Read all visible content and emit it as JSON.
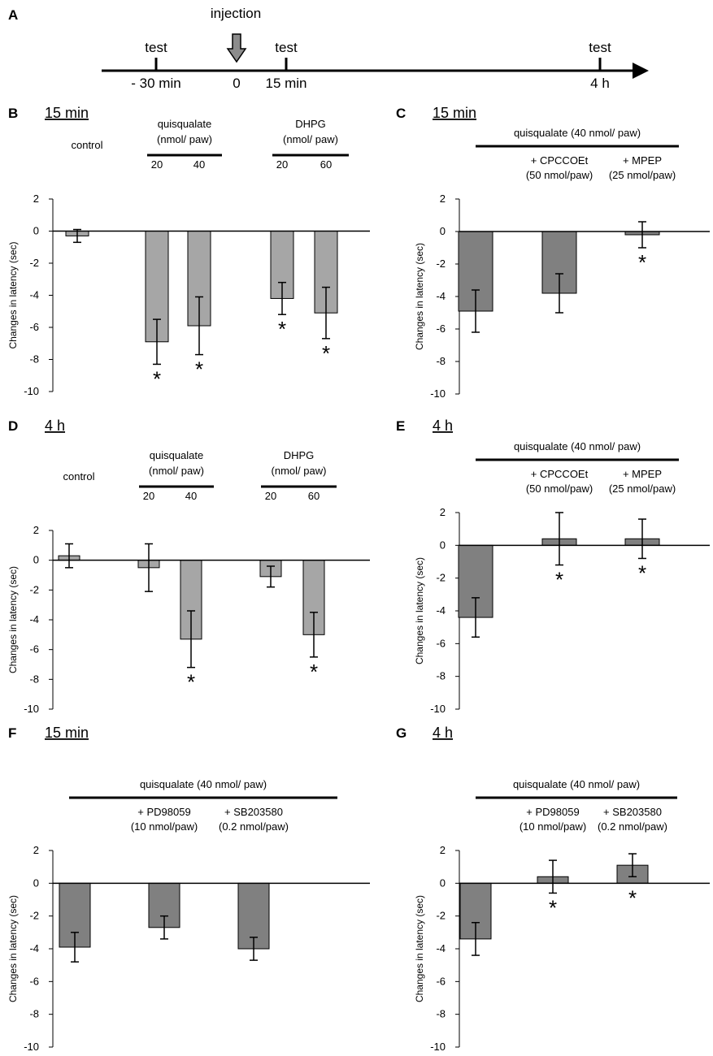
{
  "timeline": {
    "panel": "A",
    "injection_label": "injection",
    "events": [
      {
        "top": "test",
        "bottom": "- 30 min"
      },
      {
        "top": "",
        "bottom": "0"
      },
      {
        "top": "test",
        "bottom": "15 min"
      },
      {
        "top": "test",
        "bottom": "4 h"
      }
    ]
  },
  "chart_data": [
    {
      "panel": "B",
      "title": "15 min",
      "type": "bar",
      "ylabel": "Changes in latency (sec)",
      "ylim": [
        -10,
        2
      ],
      "yticks": [
        2,
        0,
        -2,
        -4,
        -6,
        -8,
        -10
      ],
      "bar_color": "#a6a6a6",
      "categories": [
        "control",
        "quisqualate 20",
        "quisqualate 40",
        "DHPG 20",
        "DHPG 60"
      ],
      "values": [
        -0.3,
        -6.9,
        -5.9,
        -4.2,
        -5.1
      ],
      "errors": [
        0.4,
        1.4,
        1.8,
        1.0,
        1.6
      ],
      "significant": [
        false,
        true,
        true,
        true,
        true
      ],
      "dose_labels": [
        "",
        "20",
        "40",
        "20",
        "60"
      ],
      "groups": [
        {
          "lines": [
            "control"
          ],
          "bar": false
        },
        {
          "lines": [
            "quisqualate",
            "(nmol/ paw)"
          ],
          "bar": true
        },
        {
          "lines": [
            "DHPG",
            "(nmol/ paw)"
          ],
          "bar": true
        }
      ]
    },
    {
      "panel": "C",
      "title": "15 min",
      "type": "bar",
      "ylabel": "Changes in latency (sec)",
      "ylim": [
        -10,
        2
      ],
      "yticks": [
        2,
        0,
        -2,
        -4,
        -6,
        -8,
        -10
      ],
      "bar_color": "#808080",
      "categories": [
        "quisqualate",
        "+ CPCCOEt",
        "+ MPEP"
      ],
      "values": [
        -4.9,
        -3.8,
        -0.2
      ],
      "errors": [
        1.3,
        1.2,
        0.8
      ],
      "significant": [
        false,
        false,
        true
      ],
      "header": "quisqualate (40 nmol/ paw)",
      "sublabels": [
        [],
        [
          "+ CPCCOEt",
          "(50 nmol/paw)"
        ],
        [
          "+ MPEP",
          "(25 nmol/paw)"
        ]
      ]
    },
    {
      "panel": "D",
      "title": "4 h",
      "type": "bar",
      "ylabel": "Changes in latency (sec)",
      "ylim": [
        -10,
        2
      ],
      "yticks": [
        2,
        0,
        -2,
        -4,
        -6,
        -8,
        -10
      ],
      "bar_color": "#a6a6a6",
      "categories": [
        "control",
        "quisqualate 20",
        "quisqualate 40",
        "DHPG 20",
        "DHPG 60"
      ],
      "values": [
        0.3,
        -0.5,
        -5.3,
        -1.1,
        -5.0
      ],
      "errors": [
        0.8,
        1.6,
        1.9,
        0.7,
        1.5
      ],
      "significant": [
        false,
        false,
        true,
        false,
        true
      ],
      "dose_labels": [
        "",
        "20",
        "40",
        "20",
        "60"
      ],
      "groups": [
        {
          "lines": [
            "control"
          ],
          "bar": false
        },
        {
          "lines": [
            "quisqualate",
            "(nmol/ paw)"
          ],
          "bar": true
        },
        {
          "lines": [
            "DHPG",
            "(nmol/ paw)"
          ],
          "bar": true
        }
      ]
    },
    {
      "panel": "E",
      "title": "4 h",
      "type": "bar",
      "ylabel": "Changes in latency (sec)",
      "ylim": [
        -10,
        2
      ],
      "yticks": [
        2,
        0,
        -2,
        -4,
        -6,
        -8,
        -10
      ],
      "bar_color": "#808080",
      "categories": [
        "quisqualate",
        "+ CPCCOEt",
        "+ MPEP"
      ],
      "values": [
        -4.4,
        0.4,
        0.4
      ],
      "errors": [
        1.2,
        1.6,
        1.2
      ],
      "significant": [
        false,
        true,
        true
      ],
      "header": "quisqualate (40 nmol/ paw)",
      "sublabels": [
        [],
        [
          "+ CPCCOEt",
          "(50 nmol/paw)"
        ],
        [
          "+ MPEP",
          "(25 nmol/paw)"
        ]
      ]
    },
    {
      "panel": "F",
      "title": "15 min",
      "type": "bar",
      "ylabel": "Changes in latency (sec)",
      "ylim": [
        -10,
        2
      ],
      "yticks": [
        2,
        0,
        -2,
        -4,
        -6,
        -8,
        -10
      ],
      "bar_color": "#808080",
      "categories": [
        "quisqualate",
        "+ PD98059",
        "+ SB203580"
      ],
      "values": [
        -3.9,
        -2.7,
        -4.0
      ],
      "errors": [
        0.9,
        0.7,
        0.7
      ],
      "significant": [
        false,
        false,
        false
      ],
      "header": "quisqualate (40 nmol/ paw)",
      "sublabels": [
        [],
        [
          "+ PD98059",
          "(10 nmol/paw)"
        ],
        [
          "+ SB203580",
          "(0.2 nmol/paw)"
        ]
      ]
    },
    {
      "panel": "G",
      "title": "4 h",
      "type": "bar",
      "ylabel": "Changes in latency (sec)",
      "ylim": [
        -10,
        2
      ],
      "yticks": [
        2,
        0,
        -2,
        -4,
        -6,
        -8,
        -10
      ],
      "bar_color": "#808080",
      "categories": [
        "quisqualate",
        "+ PD98059",
        "+ SB203580"
      ],
      "values": [
        -3.4,
        0.4,
        1.1
      ],
      "errors": [
        1.0,
        1.0,
        0.7
      ],
      "significant": [
        false,
        true,
        true
      ],
      "header": "quisqualate (40 nmol/ paw)",
      "sublabels": [
        [],
        [
          "+ PD98059",
          "(10 nmol/paw)"
        ],
        [
          "+ SB203580",
          "(0.2 nmol/paw)"
        ]
      ]
    }
  ]
}
